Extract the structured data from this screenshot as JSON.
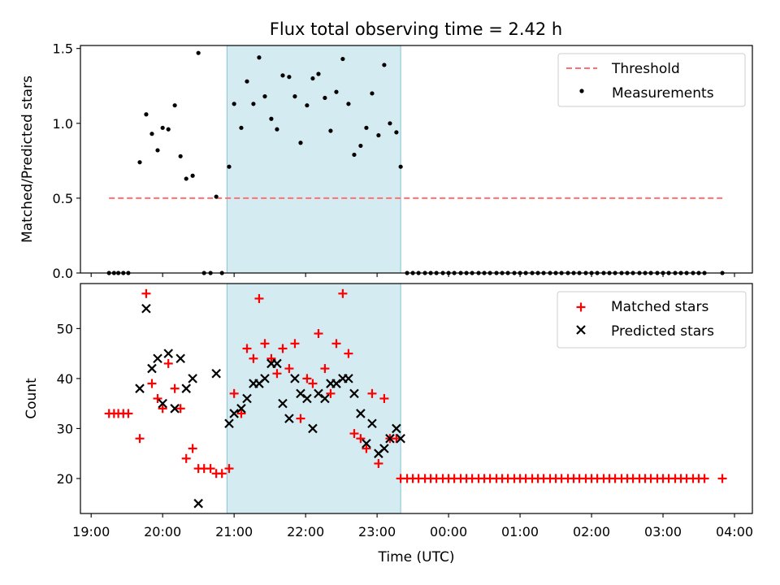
{
  "chart_data": [
    {
      "type": "scatter",
      "title": "Flux total observing time = 2.42 h",
      "xlabel": "",
      "ylabel": "Matched/Predicted stars",
      "xlim": [
        -0.15,
        9.25
      ],
      "ylim": [
        0.0,
        1.52
      ],
      "yticks": [
        0.0,
        0.5,
        1.0,
        1.5
      ],
      "yticklabels": [
        "0.0",
        "0.5",
        "1.0",
        "1.5"
      ],
      "xticks": [
        0,
        1,
        2,
        3,
        4,
        5,
        6,
        7,
        8,
        9
      ],
      "xticklabels_visible": false,
      "shaded_span": {
        "x0": 1.9,
        "x1": 4.33,
        "color": "#add8e6"
      },
      "legend": {
        "position": "top-right",
        "entries": [
          "Threshold",
          "Measurements"
        ]
      },
      "threshold": {
        "name": "Threshold",
        "y": 0.5,
        "x": [
          0.25,
          8.83
        ],
        "color": "#ff7070",
        "style": "dashed"
      },
      "series": [
        {
          "name": "Measurements",
          "color": "#000000",
          "marker": "dot",
          "points": [
            [
              0.25,
              0
            ],
            [
              0.32,
              0
            ],
            [
              0.38,
              0
            ],
            [
              0.45,
              0
            ],
            [
              0.52,
              0
            ],
            [
              0.68,
              0.74
            ],
            [
              0.77,
              1.06
            ],
            [
              0.85,
              0.93
            ],
            [
              0.93,
              0.82
            ],
            [
              1.0,
              0.97
            ],
            [
              1.08,
              0.96
            ],
            [
              1.17,
              1.12
            ],
            [
              1.25,
              0.78
            ],
            [
              1.33,
              0.63
            ],
            [
              1.42,
              0.65
            ],
            [
              1.5,
              1.47
            ],
            [
              1.58,
              0
            ],
            [
              1.67,
              0
            ],
            [
              1.75,
              0.51
            ],
            [
              1.83,
              0
            ],
            [
              1.93,
              0.71
            ],
            [
              2.0,
              1.13
            ],
            [
              2.1,
              0.97
            ],
            [
              2.18,
              1.28
            ],
            [
              2.27,
              1.13
            ],
            [
              2.35,
              1.44
            ],
            [
              2.43,
              1.18
            ],
            [
              2.52,
              1.03
            ],
            [
              2.6,
              0.96
            ],
            [
              2.68,
              1.32
            ],
            [
              2.77,
              1.31
            ],
            [
              2.85,
              1.18
            ],
            [
              2.93,
              0.87
            ],
            [
              3.02,
              1.12
            ],
            [
              3.1,
              1.3
            ],
            [
              3.18,
              1.33
            ],
            [
              3.27,
              1.17
            ],
            [
              3.35,
              0.95
            ],
            [
              3.43,
              1.21
            ],
            [
              3.52,
              1.43
            ],
            [
              3.6,
              1.13
            ],
            [
              3.68,
              0.79
            ],
            [
              3.77,
              0.85
            ],
            [
              3.85,
              0.97
            ],
            [
              3.93,
              1.2
            ],
            [
              4.02,
              0.92
            ],
            [
              4.1,
              1.39
            ],
            [
              4.18,
              1.0
            ],
            [
              4.27,
              0.94
            ],
            [
              4.33,
              0.71
            ],
            [
              4.42,
              0
            ],
            [
              4.5,
              0
            ],
            [
              4.58,
              0
            ],
            [
              4.67,
              0
            ],
            [
              4.75,
              0
            ],
            [
              4.83,
              0
            ],
            [
              4.92,
              0
            ],
            [
              5.0,
              0
            ],
            [
              5.08,
              0
            ],
            [
              5.17,
              0
            ],
            [
              5.25,
              0
            ],
            [
              5.33,
              0
            ],
            [
              5.42,
              0
            ],
            [
              5.5,
              0
            ],
            [
              5.58,
              0
            ],
            [
              5.67,
              0
            ],
            [
              5.75,
              0
            ],
            [
              5.83,
              0
            ],
            [
              5.92,
              0
            ],
            [
              6.0,
              0
            ],
            [
              6.08,
              0
            ],
            [
              6.17,
              0
            ],
            [
              6.25,
              0
            ],
            [
              6.33,
              0
            ],
            [
              6.42,
              0
            ],
            [
              6.5,
              0
            ],
            [
              6.58,
              0
            ],
            [
              6.67,
              0
            ],
            [
              6.75,
              0
            ],
            [
              6.83,
              0
            ],
            [
              6.92,
              0
            ],
            [
              7.0,
              0
            ],
            [
              7.08,
              0
            ],
            [
              7.17,
              0
            ],
            [
              7.25,
              0
            ],
            [
              7.33,
              0
            ],
            [
              7.42,
              0
            ],
            [
              7.5,
              0
            ],
            [
              7.58,
              0
            ],
            [
              7.67,
              0
            ],
            [
              7.75,
              0
            ],
            [
              7.83,
              0
            ],
            [
              7.92,
              0
            ],
            [
              8.0,
              0
            ],
            [
              8.08,
              0
            ],
            [
              8.17,
              0
            ],
            [
              8.25,
              0
            ],
            [
              8.33,
              0
            ],
            [
              8.42,
              0
            ],
            [
              8.5,
              0
            ],
            [
              8.58,
              0
            ],
            [
              8.83,
              0
            ]
          ]
        }
      ]
    },
    {
      "type": "scatter",
      "title": "",
      "xlabel": "Time (UTC)",
      "ylabel": "Count",
      "xlim": [
        -0.15,
        9.25
      ],
      "ylim": [
        13,
        59
      ],
      "yticks": [
        20,
        30,
        40,
        50
      ],
      "yticklabels": [
        "20",
        "30",
        "40",
        "50"
      ],
      "xticks": [
        0,
        1,
        2,
        3,
        4,
        5,
        6,
        7,
        8,
        9
      ],
      "xticklabels": [
        "19:00",
        "20:00",
        "21:00",
        "22:00",
        "23:00",
        "00:00",
        "01:00",
        "02:00",
        "03:00",
        "04:00"
      ],
      "shaded_span": {
        "x0": 1.9,
        "x1": 4.33,
        "color": "#add8e6"
      },
      "legend": {
        "position": "top-right",
        "entries": [
          "Matched stars",
          "Predicted stars"
        ]
      },
      "series": [
        {
          "name": "Matched stars",
          "color": "#ff0000",
          "marker": "plus",
          "points": [
            [
              0.25,
              33
            ],
            [
              0.32,
              33
            ],
            [
              0.38,
              33
            ],
            [
              0.45,
              33
            ],
            [
              0.52,
              33
            ],
            [
              0.68,
              28
            ],
            [
              0.77,
              57
            ],
            [
              0.85,
              39
            ],
            [
              0.93,
              36
            ],
            [
              1.0,
              34
            ],
            [
              1.08,
              43
            ],
            [
              1.17,
              38
            ],
            [
              1.25,
              34
            ],
            [
              1.33,
              24
            ],
            [
              1.42,
              26
            ],
            [
              1.5,
              22
            ],
            [
              1.58,
              22
            ],
            [
              1.67,
              22
            ],
            [
              1.75,
              21
            ],
            [
              1.83,
              21
            ],
            [
              1.93,
              22
            ],
            [
              2.0,
              37
            ],
            [
              2.1,
              33
            ],
            [
              2.18,
              46
            ],
            [
              2.27,
              44
            ],
            [
              2.35,
              56
            ],
            [
              2.43,
              47
            ],
            [
              2.52,
              44
            ],
            [
              2.6,
              41
            ],
            [
              2.68,
              46
            ],
            [
              2.77,
              42
            ],
            [
              2.85,
              47
            ],
            [
              2.93,
              32
            ],
            [
              3.02,
              40
            ],
            [
              3.1,
              39
            ],
            [
              3.18,
              49
            ],
            [
              3.27,
              42
            ],
            [
              3.35,
              37
            ],
            [
              3.43,
              47
            ],
            [
              3.52,
              57
            ],
            [
              3.6,
              45
            ],
            [
              3.68,
              29
            ],
            [
              3.77,
              28
            ],
            [
              3.85,
              26
            ],
            [
              3.93,
              37
            ],
            [
              4.02,
              23
            ],
            [
              4.1,
              36
            ],
            [
              4.18,
              28
            ],
            [
              4.27,
              28
            ],
            [
              4.33,
              20
            ],
            [
              4.42,
              20
            ],
            [
              4.5,
              20
            ],
            [
              4.58,
              20
            ],
            [
              4.67,
              20
            ],
            [
              4.75,
              20
            ],
            [
              4.83,
              20
            ],
            [
              4.92,
              20
            ],
            [
              5.0,
              20
            ],
            [
              5.08,
              20
            ],
            [
              5.17,
              20
            ],
            [
              5.25,
              20
            ],
            [
              5.33,
              20
            ],
            [
              5.42,
              20
            ],
            [
              5.5,
              20
            ],
            [
              5.58,
              20
            ],
            [
              5.67,
              20
            ],
            [
              5.75,
              20
            ],
            [
              5.83,
              20
            ],
            [
              5.92,
              20
            ],
            [
              6.0,
              20
            ],
            [
              6.08,
              20
            ],
            [
              6.17,
              20
            ],
            [
              6.25,
              20
            ],
            [
              6.33,
              20
            ],
            [
              6.42,
              20
            ],
            [
              6.5,
              20
            ],
            [
              6.58,
              20
            ],
            [
              6.67,
              20
            ],
            [
              6.75,
              20
            ],
            [
              6.83,
              20
            ],
            [
              6.92,
              20
            ],
            [
              7.0,
              20
            ],
            [
              7.08,
              20
            ],
            [
              7.17,
              20
            ],
            [
              7.25,
              20
            ],
            [
              7.33,
              20
            ],
            [
              7.42,
              20
            ],
            [
              7.5,
              20
            ],
            [
              7.58,
              20
            ],
            [
              7.67,
              20
            ],
            [
              7.75,
              20
            ],
            [
              7.83,
              20
            ],
            [
              7.92,
              20
            ],
            [
              8.0,
              20
            ],
            [
              8.08,
              20
            ],
            [
              8.17,
              20
            ],
            [
              8.25,
              20
            ],
            [
              8.33,
              20
            ],
            [
              8.42,
              20
            ],
            [
              8.5,
              20
            ],
            [
              8.58,
              20
            ],
            [
              8.83,
              20
            ]
          ]
        },
        {
          "name": "Predicted stars",
          "color": "#000000",
          "marker": "x",
          "points": [
            [
              0.68,
              38
            ],
            [
              0.77,
              54
            ],
            [
              0.85,
              42
            ],
            [
              0.93,
              44
            ],
            [
              1.0,
              35
            ],
            [
              1.08,
              45
            ],
            [
              1.17,
              34
            ],
            [
              1.25,
              44
            ],
            [
              1.33,
              38
            ],
            [
              1.42,
              40
            ],
            [
              1.5,
              15
            ],
            [
              1.75,
              41
            ],
            [
              1.93,
              31
            ],
            [
              2.0,
              33
            ],
            [
              2.1,
              34
            ],
            [
              2.18,
              36
            ],
            [
              2.27,
              39
            ],
            [
              2.35,
              39
            ],
            [
              2.43,
              40
            ],
            [
              2.52,
              43
            ],
            [
              2.6,
              43
            ],
            [
              2.68,
              35
            ],
            [
              2.77,
              32
            ],
            [
              2.85,
              40
            ],
            [
              2.93,
              37
            ],
            [
              3.02,
              36
            ],
            [
              3.1,
              30
            ],
            [
              3.18,
              37
            ],
            [
              3.27,
              36
            ],
            [
              3.35,
              39
            ],
            [
              3.43,
              39
            ],
            [
              3.52,
              40
            ],
            [
              3.6,
              40
            ],
            [
              3.68,
              37
            ],
            [
              3.77,
              33
            ],
            [
              3.85,
              27
            ],
            [
              3.93,
              31
            ],
            [
              4.02,
              25
            ],
            [
              4.1,
              26
            ],
            [
              4.18,
              28
            ],
            [
              4.27,
              30
            ],
            [
              4.33,
              28
            ]
          ]
        }
      ]
    }
  ]
}
